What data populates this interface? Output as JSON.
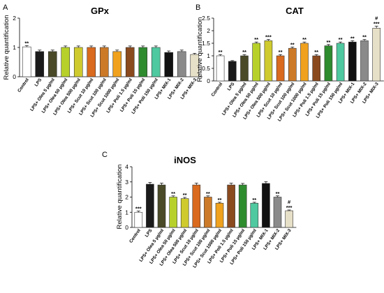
{
  "chart_data": [
    {
      "type": "bar",
      "panel_label": "A",
      "title": "GPx",
      "ylabel": "Relative quantification",
      "xlabel": "",
      "ylim": [
        0,
        2
      ],
      "yticks": [
        "0",
        "1",
        "2"
      ],
      "categories": [
        "Control",
        "LPS",
        "LPS+ Olea 5 µg/ml",
        "LPS+ Olea 50 µg/ml",
        "LPS+ Olea 500 µg/ml",
        "LPS+ Scut 10 µg/ml",
        "LPS+ Scut 100 µg/ml",
        "LPS+ Scut 1000 µg/ml",
        "LPS+ Poli 1.5 µg/ml",
        "LPS+ Poli 15 µg/ml",
        "LPS+ Poli 150 µg/ml",
        "LPS+ MIX-1",
        "LPS+ MIX-2",
        "LPS+ MIX-3"
      ],
      "values": [
        1.02,
        0.86,
        0.86,
        1.0,
        1.0,
        1.0,
        1.0,
        0.86,
        1.0,
        1.0,
        1.0,
        0.83,
        0.86,
        0.76
      ],
      "errors": [
        0.04,
        0.05,
        0.05,
        0.05,
        0.05,
        0.05,
        0.05,
        0.05,
        0.05,
        0.05,
        0.05,
        0.05,
        0.05,
        0.04
      ],
      "annotations": [
        {
          "index": 0,
          "text": "**"
        }
      ],
      "colors": [
        "#ffffff",
        "#1a1a1a",
        "#4a4a28",
        "#b8d12a",
        "#cfcb2e",
        "#d96a1e",
        "#cc7a28",
        "#f0a21e",
        "#8b4a1e",
        "#2e8b2e",
        "#4fc9a0",
        "#111111",
        "#8a8a8a",
        "#e7e0c8"
      ]
    },
    {
      "type": "bar",
      "panel_label": "B",
      "title": "CAT",
      "ylabel": "Relative quantification",
      "xlabel": "",
      "ylim": [
        0,
        2.5
      ],
      "yticks": [
        "0",
        "0.5",
        "1",
        "1.5",
        "2",
        "2.5"
      ],
      "categories": [
        "Control",
        "LPS",
        "LPS+ Olea 5 µg/ml",
        "LPS+ Olea 50 µg/ml",
        "LPS+ Olea 500 µg/ml",
        "LPS+ Scut 10 µg/ml",
        "LPS+ Scut 100 µg/ml",
        "LPS+ Scut 1000 µg/ml",
        "LPS+ Poli 1.5 µg/ml",
        "LPS+ Poli 15 µg/ml",
        "LPS+ Poli 150 µg/ml",
        "LPS+ MIX-1",
        "LPS+ MIX-2",
        "LPS+ MIX-3"
      ],
      "values": [
        1.0,
        0.78,
        1.0,
        1.5,
        1.6,
        1.0,
        1.3,
        1.5,
        1.0,
        1.4,
        1.5,
        1.55,
        1.6,
        2.1
      ],
      "errors": [
        0.05,
        0.03,
        0.05,
        0.05,
        0.05,
        0.05,
        0.05,
        0.05,
        0.05,
        0.05,
        0.05,
        0.05,
        0.05,
        0.08
      ],
      "annotations": [
        {
          "index": 0,
          "text": "**"
        },
        {
          "index": 2,
          "text": "**"
        },
        {
          "index": 3,
          "text": "**"
        },
        {
          "index": 4,
          "text": "***"
        },
        {
          "index": 5,
          "text": "**"
        },
        {
          "index": 6,
          "text": "**"
        },
        {
          "index": 7,
          "text": "**"
        },
        {
          "index": 8,
          "text": "**"
        },
        {
          "index": 9,
          "text": "**"
        },
        {
          "index": 10,
          "text": "**"
        },
        {
          "index": 11,
          "text": "**"
        },
        {
          "index": 12,
          "text": "**"
        },
        {
          "index": 13,
          "text": "***",
          "extra": "#"
        }
      ],
      "colors": [
        "#ffffff",
        "#1a1a1a",
        "#4a4a28",
        "#b8d12a",
        "#cfcb2e",
        "#d96a1e",
        "#cc7a28",
        "#f0a21e",
        "#8b4a1e",
        "#2e8b2e",
        "#4fc9a0",
        "#111111",
        "#8a8a8a",
        "#e7e0c8"
      ]
    },
    {
      "type": "bar",
      "panel_label": "C",
      "title": "iNOS",
      "ylabel": "Relative quantification",
      "xlabel": "",
      "ylim": [
        0,
        4
      ],
      "yticks": [
        "0",
        "1",
        "2",
        "3",
        "4"
      ],
      "categories": [
        "Control",
        "LPS",
        "LPS+ Olea 5 µg/ml",
        "LPS+ Olea 50 µg/ml",
        "LPS+ Olea 500 µg/ml",
        "LPS+ Scut 10 µg/ml",
        "LPS+ Scut 100 µg/ml",
        "LPS+ Scut 1000 µg/ml",
        "LPS+ Poli 1.5 µg/ml",
        "LPS+ Poli 15 µg/ml",
        "LPS+ Poli 150 µg/ml",
        "LPS+ MIX-1",
        "LPS+ MIX-2",
        "LPS+ MIX-3"
      ],
      "values": [
        1.0,
        2.85,
        2.8,
        2.0,
        1.9,
        2.8,
        2.0,
        1.6,
        2.8,
        2.8,
        1.6,
        2.9,
        2.0,
        1.1
      ],
      "errors": [
        0.08,
        0.12,
        0.12,
        0.08,
        0.08,
        0.12,
        0.08,
        0.06,
        0.12,
        0.1,
        0.06,
        0.12,
        0.08,
        0.05
      ],
      "annotations": [
        {
          "index": 0,
          "text": "***"
        },
        {
          "index": 3,
          "text": "**"
        },
        {
          "index": 4,
          "text": "**"
        },
        {
          "index": 6,
          "text": "**"
        },
        {
          "index": 7,
          "text": "**"
        },
        {
          "index": 10,
          "text": "**"
        },
        {
          "index": 12,
          "text": "**"
        },
        {
          "index": 13,
          "text": "***",
          "extra": "#"
        }
      ],
      "colors": [
        "#ffffff",
        "#1a1a1a",
        "#4a4a28",
        "#b8d12a",
        "#cfcb2e",
        "#d96a1e",
        "#cc7a28",
        "#f0a21e",
        "#8b4a1e",
        "#2e8b2e",
        "#4fc9a0",
        "#111111",
        "#8a8a8a",
        "#e7e0c8"
      ]
    }
  ]
}
